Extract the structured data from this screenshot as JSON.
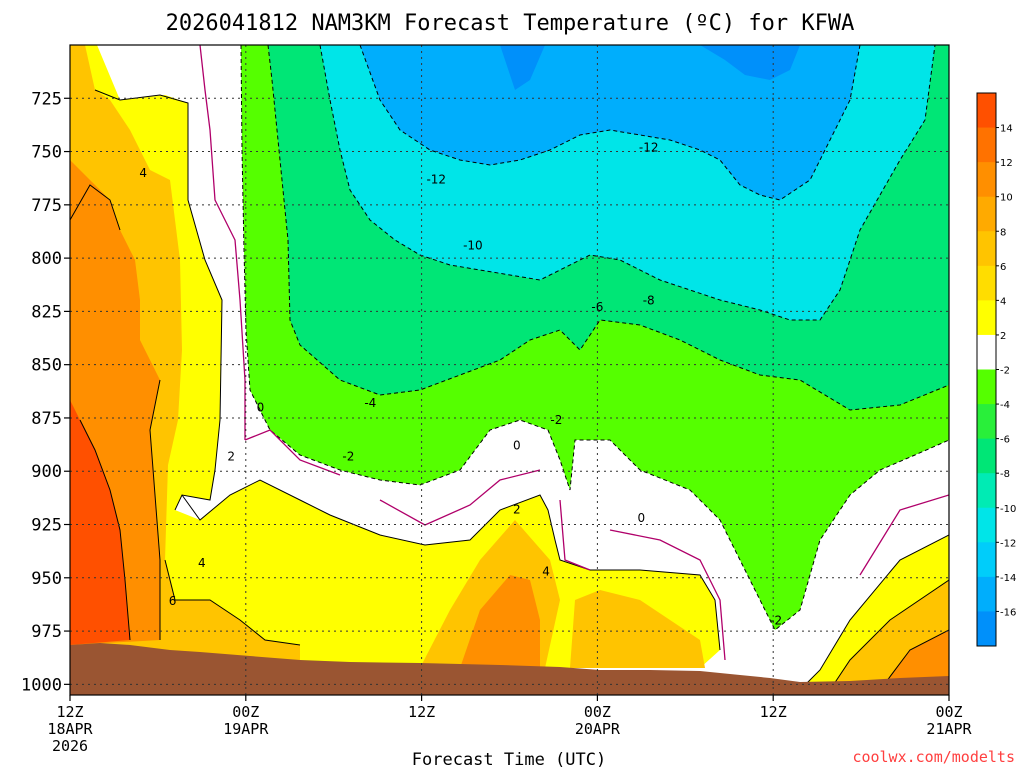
{
  "chart_data": {
    "type": "heatmap",
    "title": "2026041812 NAM3KM Forecast Temperature (ºC) for KFWA",
    "xlabel": "Forecast Time (UTC)",
    "ylabel": "",
    "x_ticks": [
      {
        "hours": 0,
        "lines": [
          "12Z",
          "18APR",
          "2026"
        ]
      },
      {
        "hours": 12,
        "lines": [
          "00Z",
          "19APR"
        ]
      },
      {
        "hours": 24,
        "lines": [
          "12Z"
        ]
      },
      {
        "hours": 36,
        "lines": [
          "00Z",
          "20APR"
        ]
      },
      {
        "hours": 48,
        "lines": [
          "12Z"
        ]
      },
      {
        "hours": 60,
        "lines": [
          "00Z",
          "21APR"
        ]
      }
    ],
    "xlim": [
      0,
      60
    ],
    "y_ticks": [
      "725",
      "750",
      "775",
      "800",
      "825",
      "850",
      "875",
      "900",
      "925",
      "950",
      "975",
      "1000"
    ],
    "ylim": [
      1005,
      700
    ],
    "contour_labels": [
      {
        "text": "4",
        "hours": 5.0,
        "pressure": 760
      },
      {
        "text": "-12",
        "hours": 25.0,
        "pressure": 763
      },
      {
        "text": "-12",
        "hours": 39.5,
        "pressure": 748
      },
      {
        "text": "-10",
        "hours": 27.5,
        "pressure": 794
      },
      {
        "text": "-8",
        "hours": 39.5,
        "pressure": 820
      },
      {
        "text": "-6",
        "hours": 36.0,
        "pressure": 823
      },
      {
        "text": "-4",
        "hours": 20.5,
        "pressure": 868
      },
      {
        "text": "0",
        "hours": 13.0,
        "pressure": 870
      },
      {
        "text": "-2",
        "hours": 33.2,
        "pressure": 876
      },
      {
        "text": "-2",
        "hours": 19.0,
        "pressure": 893
      },
      {
        "text": "2",
        "hours": 11.0,
        "pressure": 893
      },
      {
        "text": "0",
        "hours": 30.5,
        "pressure": 888
      },
      {
        "text": "2",
        "hours": 30.5,
        "pressure": 918
      },
      {
        "text": "0",
        "hours": 39.0,
        "pressure": 922
      },
      {
        "text": "4",
        "hours": 9.0,
        "pressure": 943
      },
      {
        "text": "4",
        "hours": 32.5,
        "pressure": 947
      },
      {
        "text": "6",
        "hours": 7.0,
        "pressure": 961
      },
      {
        "text": "-2",
        "hours": 48.2,
        "pressure": 970
      }
    ],
    "colorbar": {
      "levels": [
        "14",
        "12",
        "10",
        "8",
        "6",
        "4",
        "2",
        "-2",
        "-4",
        "-6",
        "-8",
        "-10",
        "-12",
        "-14",
        "-16"
      ],
      "colors": [
        "#ff5000",
        "#ff7200",
        "#ff8f00",
        "#ffaa00",
        "#ffc400",
        "#ffdd00",
        "#ffff00",
        "#ffffff",
        "#55ff00",
        "#29ef3a",
        "#00e676",
        "#00ebb4",
        "#00e5e8",
        "#00cdfa",
        "#00aefc",
        "#0090fa"
      ]
    },
    "grid": true,
    "colors": {
      "terrain": "#9a5532",
      "zero_line": "#b0006a",
      "warm_deep": "#ff5000",
      "warm_orange": "#ff8f00",
      "warm_amber": "#ffc400",
      "warm_yellow": "#ffff00",
      "cold_green": "#55ff00",
      "cold_teal": "#00e676",
      "cold_cyan": "#00e5e8",
      "cold_blue": "#00aefc",
      "cold_deep": "#0090fa"
    }
  },
  "credit": "coolwx.com/modelts"
}
